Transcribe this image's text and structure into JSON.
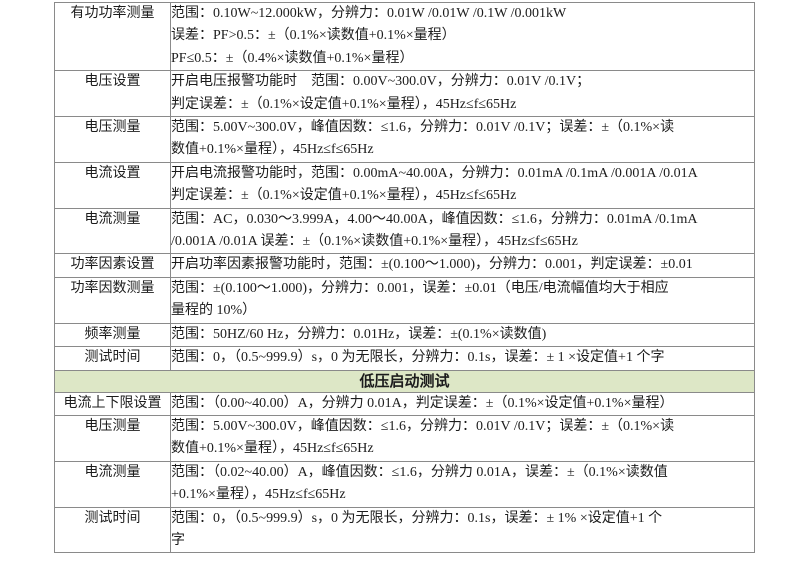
{
  "colors": {
    "border": "#8a8a8a",
    "section_header_bg": "#dde7c6",
    "text": "#1c1c1c",
    "page_bg": "#ffffff"
  },
  "table": {
    "sections": [
      {
        "header": null,
        "rows": [
          {
            "label": "有功功率测量",
            "lines": [
              "范围：0.10W~12.000kW，分辨力：0.01W /0.01W /0.1W /0.001kW",
              "误差：PF>0.5：±（0.1%×读数值+0.1%×量程）",
              "PF≤0.5：±（0.4%×读数值+0.1%×量程）"
            ]
          },
          {
            "label": "电压设置",
            "lines": [
              "开启电压报警功能时　范围：0.00V~300.0V，分辨力：0.01V /0.1V；",
              "判定误差：±（0.1%×设定值+0.1%×量程），45Hz≤f≤65Hz"
            ]
          },
          {
            "label": "电压测量",
            "lines": [
              "范围：5.00V~300.0V，峰值因数：≤1.6，分辨力：0.01V /0.1V；误差：±（0.1%×读",
              "数值+0.1%×量程），45Hz≤f≤65Hz"
            ]
          },
          {
            "label": "电流设置",
            "lines": [
              "开启电流报警功能时，范围：0.00mA~40.00A，分辨力：0.01mA /0.1mA /0.001A /0.01A",
              "判定误差：±（0.1%×设定值+0.1%×量程），45Hz≤f≤65Hz"
            ]
          },
          {
            "label": "电流测量",
            "lines": [
              "范围：AC，0.030～3.999A，4.00～40.00A，峰值因数：≤1.6，分辨力：0.01mA /0.1mA",
              "/0.001A /0.01A 误差：±（0.1%×读数值+0.1%×量程），45Hz≤f≤65Hz"
            ]
          },
          {
            "label": "功率因素设置",
            "lines": [
              "开启功率因素报警功能时，范围：±(0.100～1.000)，分辨力：0.001，判定误差：±0.01"
            ]
          },
          {
            "label": "功率因数测量",
            "lines": [
              "范围：±(0.100～1.000)，分辨力：0.001，误差：±0.01（电压/电流幅值均大于相应",
              "量程的 10%）"
            ]
          },
          {
            "label": "频率测量",
            "lines": [
              "范围：50HZ/60 Hz，分辨力：0.01Hz，误差：±(0.1%×读数值)"
            ]
          },
          {
            "label": "测试时间",
            "lines": [
              "范围：0，（0.5~999.9）s，0 为无限长，分辨力：0.1s，误差：± 1 ×设定值+1 个字"
            ]
          }
        ]
      },
      {
        "header": "低压启动测试",
        "rows": [
          {
            "label": "电流上下限设置",
            "lines": [
              "范围：（0.00~40.00）A，分辨力 0.01A，判定误差：±（0.1%×设定值+0.1%×量程）"
            ]
          },
          {
            "label": "电压测量",
            "lines": [
              "范围：5.00V~300.0V，峰值因数：≤1.6，分辨力：0.01V /0.1V；误差：±（0.1%×读",
              "数值+0.1%×量程），45Hz≤f≤65Hz"
            ]
          },
          {
            "label": "电流测量",
            "lines": [
              "范围：（0.02~40.00）A，峰值因数：≤1.6，分辨力 0.01A，误差：±（0.1%×读数值",
              "+0.1%×量程），45Hz≤f≤65Hz"
            ]
          },
          {
            "label": "测试时间",
            "lines": [
              "范围：0，（0.5~999.9）s，0 为无限长，分辨力：0.1s，误差：± 1% ×设定值+1 个",
              "字"
            ]
          }
        ]
      }
    ]
  }
}
